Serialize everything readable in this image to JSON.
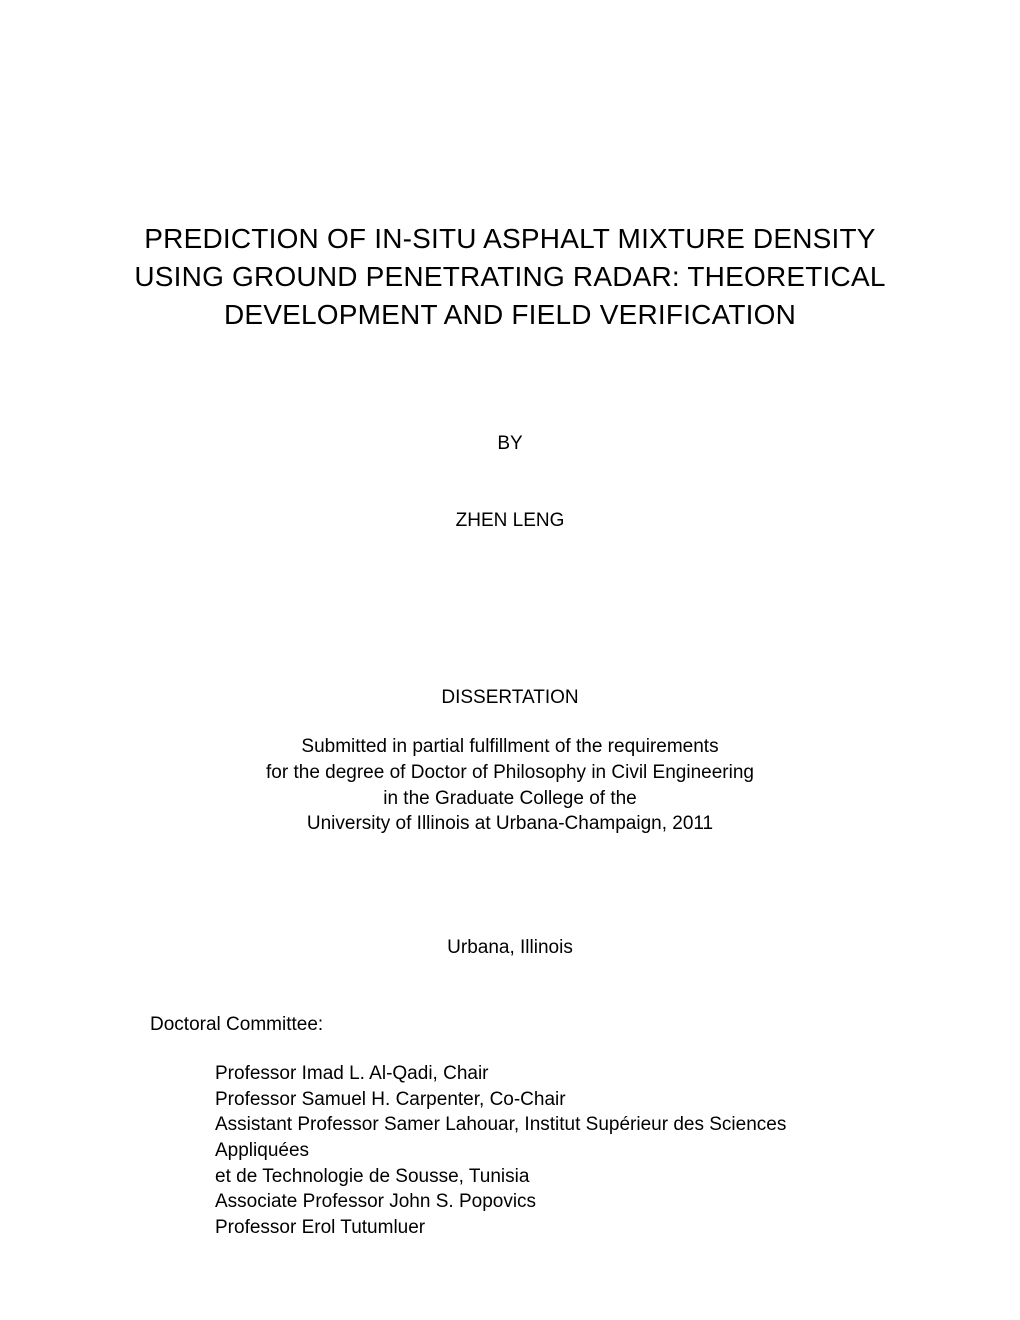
{
  "title": {
    "line1": "PREDICTION OF IN-SITU ASPHALT MIXTURE DENSITY",
    "line2": "USING GROUND PENETRATING RADAR: THEORETICAL",
    "line3": "DEVELOPMENT AND FIELD VERIFICATION"
  },
  "by_label": "BY",
  "author": "ZHEN LENG",
  "dissertation_label": "DISSERTATION",
  "submission": {
    "line1": "Submitted in partial fulfillment of the requirements",
    "line2": "for the degree of Doctor of Philosophy in Civil Engineering",
    "line3": "in the Graduate College of the",
    "line4": "University of Illinois at Urbana-Champaign, 2011"
  },
  "location": "Urbana, Illinois",
  "committee_label": "Doctoral Committee:",
  "committee": {
    "member1": "Professor Imad L. Al-Qadi, Chair",
    "member2": "Professor Samuel H. Carpenter, Co-Chair",
    "member3a": "Assistant Professor Samer Lahouar, Institut Supérieur des Sciences Appliquées",
    "member3b": "et de Technologie de Sousse, Tunisia",
    "member4": "Associate Professor John S. Popovics",
    "member5": "Professor Erol Tutumluer"
  },
  "colors": {
    "background": "#ffffff",
    "text": "#000000"
  },
  "typography": {
    "title_fontsize": 28,
    "body_fontsize": 19,
    "font_family": "Arial"
  }
}
